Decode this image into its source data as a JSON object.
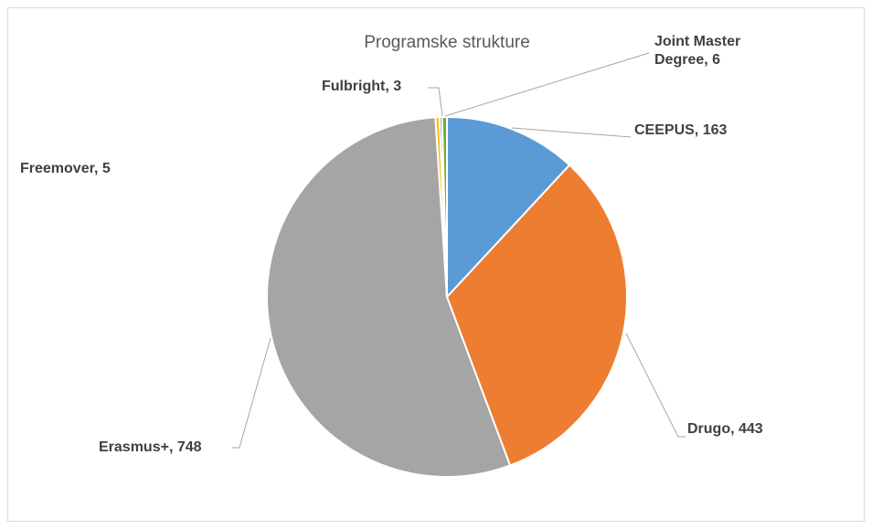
{
  "chart_data": {
    "type": "pie",
    "title": "Programske strukture",
    "values": [
      163,
      443,
      748,
      5,
      3,
      6
    ],
    "value_labels": [
      "CEEPUS, 163",
      "Drugo, 443",
      "Erasmus+, 748",
      "Freemover, 5",
      "Fulbright, 3",
      "Joint Master Degree, 6"
    ],
    "colors": [
      "#5b9bd5",
      "#ed7d31",
      "#a5a5a5",
      "#ffc000",
      "#4472c4",
      "#70ad47"
    ]
  }
}
